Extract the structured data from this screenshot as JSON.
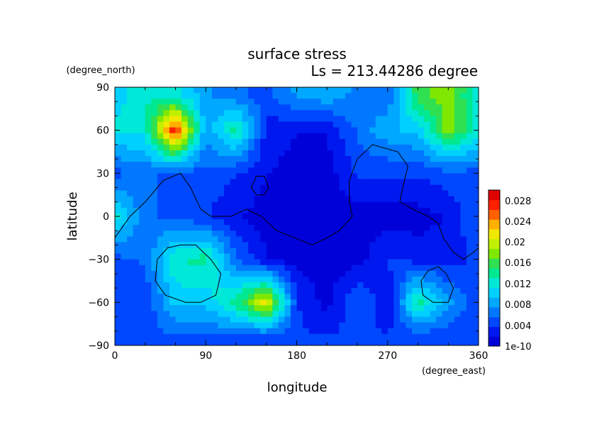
{
  "chart_data": {
    "type": "heatmap",
    "title": "surface stress",
    "subtitle": "Ls = 213.44286 degree",
    "xlabel": "longitude",
    "ylabel": "latitude",
    "x_units": "(degree_east)",
    "y_units": "(degree_north)",
    "xlim": [
      0,
      360
    ],
    "ylim": [
      -90,
      90
    ],
    "x_ticks": [
      "0",
      "90",
      "180",
      "270",
      "360"
    ],
    "y_ticks": [
      "90",
      "60",
      "30",
      "0",
      "−30",
      "−60",
      "−90"
    ],
    "x_tick_values": [
      0,
      90,
      180,
      270,
      360
    ],
    "y_tick_values": [
      90,
      60,
      30,
      0,
      -30,
      -60,
      -90
    ],
    "colorbar": {
      "labels": [
        "0.028",
        "0.024",
        "0.02",
        "0.016",
        "0.012",
        "0.008",
        "0.004",
        "1e-10"
      ],
      "range": [
        0,
        0.03
      ],
      "colors": [
        "#0000d8",
        "#0018f0",
        "#0048ff",
        "#0078ff",
        "#00a8ff",
        "#00d0ff",
        "#00e8d8",
        "#00e890",
        "#30e050",
        "#80e800",
        "#c0f000",
        "#f0e800",
        "#ffb000",
        "#ff6000",
        "#ff2000",
        "#e00000"
      ]
    },
    "data": {
      "lon": [
        0,
        30,
        60,
        90,
        120,
        150,
        180,
        210,
        240,
        270,
        300,
        330,
        360
      ],
      "lat": [
        85,
        60,
        30,
        0,
        -30,
        -60,
        -85
      ],
      "stress": [
        [
          0.01,
          0.013,
          0.012,
          0.008,
          0.006,
          0.005,
          0.008,
          0.009,
          0.007,
          0.006,
          0.016,
          0.018,
          0.012
        ],
        [
          0.012,
          0.012,
          0.028,
          0.008,
          0.014,
          0.003,
          0.002,
          0.002,
          0.006,
          0.009,
          0.01,
          0.018,
          0.012
        ],
        [
          0.005,
          0.006,
          0.005,
          0.005,
          0.004,
          0.002,
          0.001,
          0.001,
          0.004,
          0.004,
          0.004,
          0.005,
          0.005
        ],
        [
          0.012,
          0.006,
          0.005,
          0.004,
          0.002,
          0.001,
          0.001,
          0.001,
          0.001,
          0.001,
          0.001,
          0.002,
          0.006
        ],
        [
          0.005,
          0.006,
          0.013,
          0.014,
          0.006,
          0.002,
          0.001,
          0.001,
          0.001,
          0.004,
          0.003,
          0.003,
          0.004
        ],
        [
          0.004,
          0.004,
          0.01,
          0.01,
          0.014,
          0.022,
          0.004,
          0.001,
          0.006,
          0.002,
          0.014,
          0.008,
          0.004
        ],
        [
          0.005,
          0.005,
          0.005,
          0.005,
          0.005,
          0.004,
          0.004,
          0.004,
          0.004,
          0.004,
          0.004,
          0.004,
          0.005
        ]
      ]
    },
    "contours": [
      [
        [
          0,
          -15
        ],
        [
          15,
          0
        ],
        [
          30,
          10
        ],
        [
          48,
          25
        ],
        [
          65,
          30
        ],
        [
          75,
          20
        ],
        [
          85,
          5
        ],
        [
          95,
          0
        ],
        [
          115,
          0
        ],
        [
          130,
          5
        ],
        [
          145,
          0
        ],
        [
          160,
          -10
        ],
        [
          178,
          -15
        ],
        [
          195,
          -20
        ],
        [
          210,
          -15
        ],
        [
          222,
          -10
        ],
        [
          235,
          0
        ],
        [
          232,
          10
        ],
        [
          232,
          25
        ],
        [
          240,
          40
        ],
        [
          255,
          50
        ],
        [
          280,
          45
        ],
        [
          290,
          35
        ],
        [
          285,
          20
        ],
        [
          282,
          10
        ],
        [
          295,
          5
        ],
        [
          310,
          0
        ],
        [
          320,
          -5
        ],
        [
          325,
          -15
        ],
        [
          335,
          -25
        ],
        [
          345,
          -30
        ],
        [
          355,
          -25
        ],
        [
          360,
          -22
        ]
      ],
      [
        [
          135,
          20
        ],
        [
          140,
          15
        ],
        [
          148,
          15
        ],
        [
          152,
          20
        ],
        [
          148,
          28
        ],
        [
          140,
          28
        ],
        [
          135,
          20
        ]
      ],
      [
        [
          65,
          -20
        ],
        [
          80,
          -20
        ],
        [
          95,
          -30
        ],
        [
          105,
          -40
        ],
        [
          100,
          -55
        ],
        [
          85,
          -60
        ],
        [
          70,
          -60
        ],
        [
          50,
          -55
        ],
        [
          40,
          -45
        ],
        [
          42,
          -30
        ],
        [
          52,
          -22
        ],
        [
          65,
          -20
        ]
      ],
      [
        [
          320,
          -35
        ],
        [
          328,
          -40
        ],
        [
          335,
          -50
        ],
        [
          330,
          -60
        ],
        [
          315,
          -60
        ],
        [
          305,
          -55
        ],
        [
          303,
          -45
        ],
        [
          310,
          -38
        ],
        [
          320,
          -35
        ]
      ]
    ]
  }
}
